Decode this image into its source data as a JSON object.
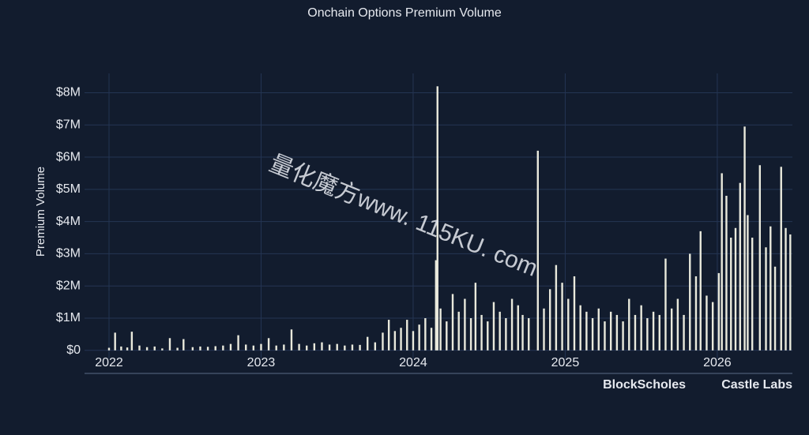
{
  "chart_data": {
    "type": "bar",
    "title": "Onchain Options Premium Volume",
    "y_label": "Premium Volume",
    "color": "#e9e9dc",
    "grid": true,
    "xlim": [
      2021.839,
      2026.494
    ],
    "xticks": [
      2022,
      2023,
      2024,
      2025,
      2026
    ],
    "ylim": [
      -250000,
      8600000
    ],
    "yticks": [
      {
        "value": 0,
        "label": "$0"
      },
      {
        "value": 1000000,
        "label": "$1M"
      },
      {
        "value": 2000000,
        "label": "$2M"
      },
      {
        "value": 3000000,
        "label": "$3M"
      },
      {
        "value": 4000000,
        "label": "$4M"
      },
      {
        "value": 5000000,
        "label": "$5M"
      },
      {
        "value": 6000000,
        "label": "$6M"
      },
      {
        "value": 7000000,
        "label": "$7M"
      },
      {
        "value": 8000000,
        "label": "$8M"
      }
    ],
    "x": [
      2022.0,
      2022.04,
      2022.08,
      2022.12,
      2022.15,
      2022.2,
      2022.25,
      2022.3,
      2022.35,
      2022.4,
      2022.45,
      2022.49,
      2022.55,
      2022.6,
      2022.65,
      2022.7,
      2022.75,
      2022.8,
      2022.85,
      2022.9,
      2022.95,
      2023.0,
      2023.05,
      2023.1,
      2023.15,
      2023.2,
      2023.25,
      2023.3,
      2023.35,
      2023.4,
      2023.45,
      2023.5,
      2023.55,
      2023.6,
      2023.65,
      2023.7,
      2023.75,
      2023.8,
      2023.84,
      2023.88,
      2023.92,
      2023.96,
      2024.0,
      2024.04,
      2024.08,
      2024.12,
      2024.15,
      2024.16,
      2024.18,
      2024.22,
      2024.26,
      2024.3,
      2024.34,
      2024.38,
      2024.41,
      2024.45,
      2024.49,
      2024.53,
      2024.57,
      2024.61,
      2024.65,
      2024.69,
      2024.72,
      2024.76,
      2024.82,
      2024.86,
      2024.9,
      2024.94,
      2024.98,
      2025.02,
      2025.06,
      2025.1,
      2025.14,
      2025.18,
      2025.22,
      2025.26,
      2025.3,
      2025.34,
      2025.38,
      2025.42,
      2025.46,
      2025.5,
      2025.54,
      2025.58,
      2025.62,
      2025.66,
      2025.7,
      2025.74,
      2025.78,
      2025.82,
      2025.86,
      2025.89,
      2025.93,
      2025.97,
      2026.01,
      2026.03,
      2026.06,
      2026.09,
      2026.12,
      2026.15,
      2026.18,
      2026.2,
      2026.23,
      2026.28,
      2026.32,
      2026.35,
      2026.38,
      2026.42,
      2026.45,
      2026.48
    ],
    "values": [
      80000,
      550000,
      120000,
      90000,
      580000,
      150000,
      100000,
      120000,
      60000,
      380000,
      80000,
      350000,
      100000,
      120000,
      110000,
      130000,
      150000,
      200000,
      470000,
      180000,
      150000,
      200000,
      380000,
      150000,
      180000,
      650000,
      200000,
      150000,
      220000,
      250000,
      180000,
      200000,
      150000,
      180000,
      170000,
      420000,
      250000,
      550000,
      950000,
      600000,
      700000,
      950000,
      600000,
      800000,
      1000000,
      700000,
      2800000,
      8200000,
      1300000,
      900000,
      1750000,
      1200000,
      1600000,
      1000000,
      2100000,
      1100000,
      900000,
      1500000,
      1200000,
      1000000,
      1600000,
      1400000,
      1100000,
      1000000,
      6200000,
      1300000,
      1900000,
      2650000,
      2100000,
      1600000,
      2300000,
      1400000,
      1200000,
      1000000,
      1300000,
      900000,
      1200000,
      1100000,
      900000,
      1600000,
      1100000,
      1400000,
      1000000,
      1200000,
      1100000,
      2850000,
      1300000,
      1600000,
      1100000,
      3000000,
      2300000,
      3700000,
      1700000,
      1500000,
      2400000,
      5500000,
      4800000,
      3500000,
      3800000,
      5200000,
      6950000,
      4200000,
      3500000,
      5750000,
      3200000,
      3850000,
      2600000,
      5700000,
      3800000,
      3600000
    ]
  },
  "watermark": "量化魔方www. 115KU. com",
  "branding": [
    "BlockScholes",
    "Castle Labs"
  ]
}
